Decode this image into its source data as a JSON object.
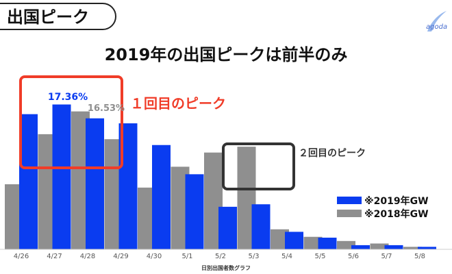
{
  "header": {
    "tag_label": "出国ピーク",
    "logo_text": "agoda"
  },
  "colors": {
    "series_2019": "#0a3cf0",
    "series_2018": "#8f8f8f",
    "highlight_red": "#f03c28",
    "highlight_dark": "#333333"
  },
  "annotations": {
    "peak1_label": "１回目のピーク",
    "peak2_label": "２回目のピーク",
    "value_2019_427": "17.36%",
    "value_2018_428": "16.53%"
  },
  "chart_data": {
    "type": "bar",
    "title": "2019年の出国ピークは前半のみ",
    "xlabel": "日別出国者数グラフ",
    "ylabel": "",
    "ylim": [
      0,
      22
    ],
    "categories": [
      "4/26",
      "4/27",
      "4/28",
      "4/29",
      "4/30",
      "5/1",
      "5/2",
      "5/3",
      "5/4",
      "5/5",
      "5/6",
      "5/7",
      "5/8"
    ],
    "series": [
      {
        "name": "※2018年GW",
        "values": [
          7.8,
          13.8,
          16.53,
          13.2,
          7.4,
          9.9,
          11.6,
          12.3,
          2.4,
          1.5,
          1.0,
          0.7,
          0.3
        ]
      },
      {
        "name": "※2019年GW",
        "values": [
          16.2,
          17.36,
          15.7,
          15.1,
          12.5,
          9.0,
          5.1,
          5.4,
          2.1,
          1.4,
          0.5,
          0.5,
          0.3
        ]
      }
    ],
    "legend": "right",
    "grid": false
  }
}
